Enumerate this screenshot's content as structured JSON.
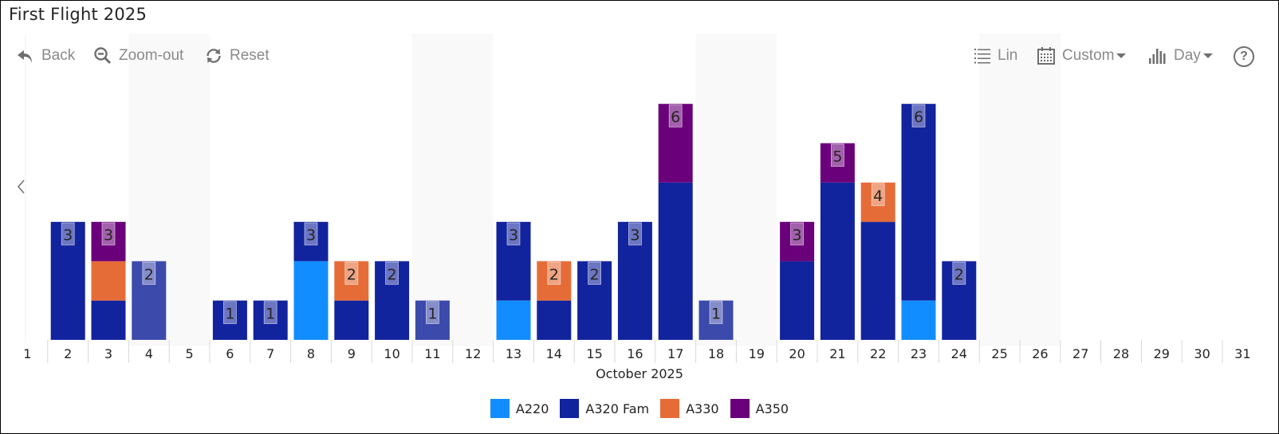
{
  "title": "First Flight 2025",
  "toolbar": {
    "back_label": "Back",
    "zoom_out_label": "Zoom-out",
    "reset_label": "Reset",
    "scale_label": "Lin",
    "range_label": "Custom",
    "granularity_label": "Day",
    "help_label": "?"
  },
  "icons": {
    "back": "undo-arrow-icon",
    "zoom_out": "zoom-out-magnifier-icon",
    "reset": "refresh-icon",
    "scale": "list-icon",
    "range": "calendar-icon",
    "granularity": "bar-chart-icon",
    "help": "help-circle-icon",
    "nav_left": "chevron-left-icon"
  },
  "colors": {
    "A220": "#118dff",
    "A320 Fam": "#12239e",
    "A320 Fam (weekend)": "#3b4aab",
    "A330": "#e66c37",
    "A350": "#6b007b",
    "weekend_band": "#f9f9f9",
    "axis_text": "#252423"
  },
  "chart_data": {
    "type": "bar",
    "stacked": true,
    "title": "First Flight 2025",
    "xlabel": "October 2025",
    "ylabel": "",
    "categories": [
      "1",
      "2",
      "3",
      "4",
      "5",
      "6",
      "7",
      "8",
      "9",
      "10",
      "11",
      "12",
      "13",
      "14",
      "15",
      "16",
      "17",
      "18",
      "19",
      "20",
      "21",
      "22",
      "23",
      "24",
      "25",
      "26",
      "27",
      "28",
      "29",
      "30",
      "31"
    ],
    "weekend_categories": [
      "4",
      "5",
      "11",
      "12",
      "18",
      "19",
      "25",
      "26"
    ],
    "series": [
      {
        "name": "A220",
        "values": [
          0,
          0,
          0,
          0,
          0,
          0,
          0,
          2,
          0,
          0,
          0,
          0,
          1,
          0,
          0,
          0,
          0,
          0,
          0,
          0,
          0,
          0,
          1,
          0,
          0,
          0,
          0,
          0,
          0,
          0,
          0
        ]
      },
      {
        "name": "A320 Fam",
        "values": [
          0,
          3,
          1,
          2,
          0,
          1,
          1,
          1,
          1,
          2,
          1,
          0,
          2,
          1,
          2,
          3,
          4,
          1,
          0,
          2,
          4,
          3,
          5,
          2,
          0,
          0,
          0,
          0,
          0,
          0,
          0
        ]
      },
      {
        "name": "A330",
        "values": [
          0,
          0,
          1,
          0,
          0,
          0,
          0,
          0,
          1,
          0,
          0,
          0,
          0,
          1,
          0,
          0,
          0,
          0,
          0,
          0,
          0,
          1,
          0,
          0,
          0,
          0,
          0,
          0,
          0,
          0,
          0
        ]
      },
      {
        "name": "A350",
        "values": [
          0,
          0,
          1,
          0,
          0,
          0,
          0,
          0,
          0,
          0,
          0,
          0,
          0,
          0,
          0,
          0,
          2,
          0,
          0,
          1,
          1,
          0,
          0,
          0,
          0,
          0,
          0,
          0,
          0,
          0,
          0
        ]
      }
    ],
    "totals": [
      0,
      3,
      3,
      2,
      0,
      1,
      1,
      3,
      2,
      2,
      1,
      0,
      3,
      2,
      2,
      3,
      6,
      1,
      0,
      3,
      5,
      4,
      6,
      2,
      0,
      0,
      0,
      0,
      0,
      0,
      0
    ],
    "ylim": [
      0,
      6.5
    ],
    "grid": false,
    "legend": [
      "A220",
      "A320 Fam",
      "A330",
      "A350"
    ],
    "legend_position": "bottom-center"
  }
}
